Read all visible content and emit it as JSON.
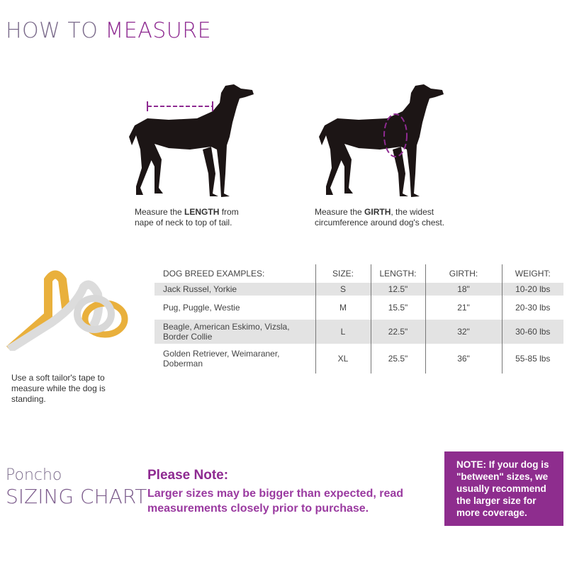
{
  "header": {
    "title_light": "HOW TO",
    "title_bold": "MEASURE"
  },
  "length": {
    "pre": "Measure the ",
    "bold": "LENGTH",
    "post": " from nape of neck to top of tail."
  },
  "girth": {
    "pre": "Measure the ",
    "bold": "GIRTH",
    "post": ", the widest circumference around dog's chest."
  },
  "tape_caption": "Use a soft tailor's tape to measure while the dog is standing.",
  "table": {
    "headers": [
      "DOG BREED EXAMPLES:",
      "SIZE:",
      "LENGTH:",
      "GIRTH:",
      "WEIGHT:"
    ],
    "rows": [
      [
        "Jack Russel, Yorkie",
        "S",
        "12.5\"",
        "18\"",
        "10-20 lbs"
      ],
      [
        "Pug, Puggle, Westie",
        "M",
        "15.5\"",
        "21\"",
        "20-30 lbs"
      ],
      [
        "Beagle, American Eskimo, Vizsla, Border Collie",
        "L",
        "22.5\"",
        "32\"",
        "30-60 lbs"
      ],
      [
        "Golden Retriever, Weimaraner, Doberman",
        "XL",
        "25.5\"",
        "36\"",
        "55-85 lbs"
      ]
    ]
  },
  "footer": {
    "product": "Poncho",
    "chart_label": "SIZING CHART",
    "note_title": "Please Note:",
    "note_text": "Larger sizes may be bigger than expected, read measurements closely prior to purchase.",
    "box_text": "NOTE: If your dog is \"between\" sizes, we usually recommend the larger size for more coverage."
  },
  "colors": {
    "accent": "#8e2a91",
    "box": "#8e2d8e",
    "row_shade": "#e3e3e3"
  }
}
